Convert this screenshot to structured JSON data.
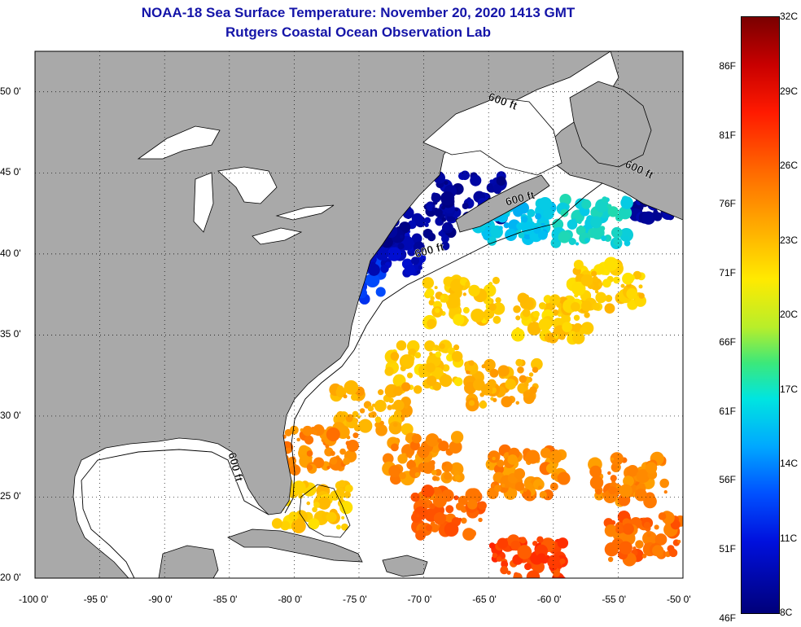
{
  "title": {
    "line1": "NOAA-18 Sea Surface Temperature:  November 20, 2020 1413 GMT",
    "line2": "Rutgers Coastal Ocean Observation Lab"
  },
  "map": {
    "lon_range": [
      -100,
      -50
    ],
    "lat_range": [
      20,
      52.5
    ],
    "x_ticks": [
      {
        "value": -100,
        "label": "-100 0'"
      },
      {
        "value": -95,
        "label": "-95 0'"
      },
      {
        "value": -90,
        "label": "-90 0'"
      },
      {
        "value": -85,
        "label": "-85 0'"
      },
      {
        "value": -80,
        "label": "-80 0'"
      },
      {
        "value": -75,
        "label": "-75 0'"
      },
      {
        "value": -70,
        "label": "-70 0'"
      },
      {
        "value": -65,
        "label": "-65 0'"
      },
      {
        "value": -60,
        "label": "-60 0'"
      },
      {
        "value": -55,
        "label": "-55 0'"
      },
      {
        "value": -50,
        "label": "-50 0'"
      }
    ],
    "y_ticks": [
      {
        "value": 50,
        "label": "50 0'"
      },
      {
        "value": 45,
        "label": "45 0'"
      },
      {
        "value": 40,
        "label": "40 0'"
      },
      {
        "value": 35,
        "label": "35 0'"
      },
      {
        "value": 30,
        "label": "30 0'"
      },
      {
        "value": 25,
        "label": "25 0'"
      },
      {
        "value": 20,
        "label": "20 0'"
      }
    ],
    "isobath_label": "600 ft",
    "isobath_labels": [
      {
        "lon": -64.0,
        "lat": 49.2,
        "angle": 20
      },
      {
        "lon": -53.5,
        "lat": 45.0,
        "angle": 25
      },
      {
        "lon": -62.5,
        "lat": 43.2,
        "angle": -15
      },
      {
        "lon": -69.5,
        "lat": 40.0,
        "angle": -15
      },
      {
        "lon": -84.8,
        "lat": 26.8,
        "angle": 75
      }
    ],
    "colors": {
      "land": "#a9a9a9",
      "water": "#ffffff",
      "grid": "#000000",
      "coast": "#000000"
    }
  },
  "colorbar": {
    "range_c": [
      8,
      32
    ],
    "celsius_labels": [
      "32C",
      "29C",
      "26C",
      "23C",
      "20C",
      "17C",
      "14C",
      "11C",
      "8C"
    ],
    "fahrenheit_labels": [
      "86F",
      "81F",
      "76F",
      "71F",
      "66F",
      "61F",
      "56F",
      "51F",
      "46F"
    ],
    "celsius_values": [
      32,
      29,
      26,
      23,
      20,
      17,
      14,
      11,
      8
    ],
    "fahrenheit_values": [
      86,
      81,
      76,
      71,
      66,
      61,
      56,
      51,
      46
    ]
  },
  "sst_patches": [
    {
      "lon": -76.0,
      "lat": 38.5,
      "temp_c": 13
    },
    {
      "lon": -73.0,
      "lat": 40.2,
      "temp_c": 10
    },
    {
      "lon": -70.5,
      "lat": 41.8,
      "temp_c": 9
    },
    {
      "lon": -66.5,
      "lat": 43.5,
      "temp_c": 9
    },
    {
      "lon": -51.0,
      "lat": 43.3,
      "temp_c": 9
    },
    {
      "lon": -63.0,
      "lat": 42.0,
      "temp_c": 17
    },
    {
      "lon": -57.0,
      "lat": 42.0,
      "temp_c": 18
    },
    {
      "lon": -67.0,
      "lat": 37.0,
      "temp_c": 24
    },
    {
      "lon": -60.0,
      "lat": 36.0,
      "temp_c": 24
    },
    {
      "lon": -56.0,
      "lat": 38.0,
      "temp_c": 24
    },
    {
      "lon": -70.0,
      "lat": 33.0,
      "temp_c": 24
    },
    {
      "lon": -64.0,
      "lat": 32.0,
      "temp_c": 25
    },
    {
      "lon": -74.0,
      "lat": 30.5,
      "temp_c": 25
    },
    {
      "lon": -78.0,
      "lat": 28.0,
      "temp_c": 26
    },
    {
      "lon": -70.0,
      "lat": 27.5,
      "temp_c": 26
    },
    {
      "lon": -62.0,
      "lat": 26.5,
      "temp_c": 26
    },
    {
      "lon": -68.0,
      "lat": 24.0,
      "temp_c": 27
    },
    {
      "lon": -62.0,
      "lat": 21.0,
      "temp_c": 28
    },
    {
      "lon": -54.0,
      "lat": 26.0,
      "temp_c": 26
    },
    {
      "lon": -53.0,
      "lat": 22.5,
      "temp_c": 27
    },
    {
      "lon": -78.5,
      "lat": 24.5,
      "temp_c": 24
    }
  ]
}
